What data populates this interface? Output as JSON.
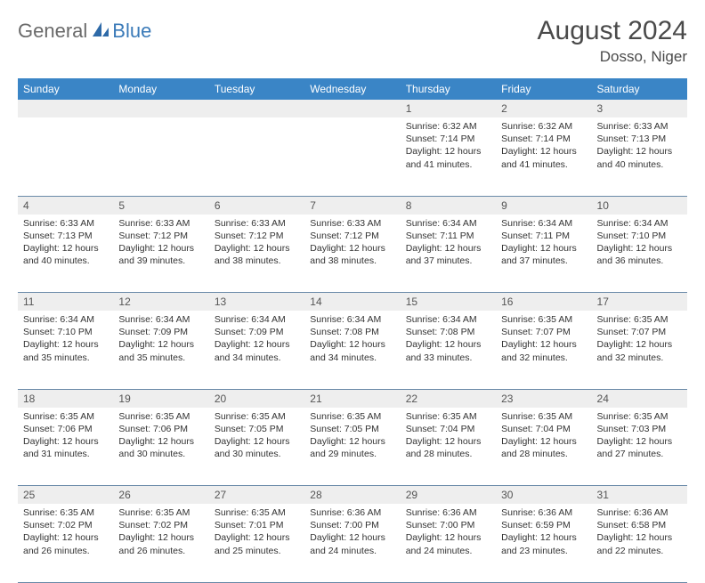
{
  "logo": {
    "part1": "General",
    "part2": "Blue"
  },
  "title": "August 2024",
  "location": "Dosso, Niger",
  "colors": {
    "header_bg": "#3a85c6",
    "header_text": "#ffffff",
    "daynum_bg": "#eeeeee",
    "border": "#6a8aa8",
    "logo_gray": "#6a6a6a",
    "logo_blue": "#3a7ab8"
  },
  "weekdays": [
    "Sunday",
    "Monday",
    "Tuesday",
    "Wednesday",
    "Thursday",
    "Friday",
    "Saturday"
  ],
  "weeks": [
    [
      null,
      null,
      null,
      null,
      {
        "n": "1",
        "sr": "6:32 AM",
        "ss": "7:14 PM",
        "dl": "12 hours and 41 minutes."
      },
      {
        "n": "2",
        "sr": "6:32 AM",
        "ss": "7:14 PM",
        "dl": "12 hours and 41 minutes."
      },
      {
        "n": "3",
        "sr": "6:33 AM",
        "ss": "7:13 PM",
        "dl": "12 hours and 40 minutes."
      }
    ],
    [
      {
        "n": "4",
        "sr": "6:33 AM",
        "ss": "7:13 PM",
        "dl": "12 hours and 40 minutes."
      },
      {
        "n": "5",
        "sr": "6:33 AM",
        "ss": "7:12 PM",
        "dl": "12 hours and 39 minutes."
      },
      {
        "n": "6",
        "sr": "6:33 AM",
        "ss": "7:12 PM",
        "dl": "12 hours and 38 minutes."
      },
      {
        "n": "7",
        "sr": "6:33 AM",
        "ss": "7:12 PM",
        "dl": "12 hours and 38 minutes."
      },
      {
        "n": "8",
        "sr": "6:34 AM",
        "ss": "7:11 PM",
        "dl": "12 hours and 37 minutes."
      },
      {
        "n": "9",
        "sr": "6:34 AM",
        "ss": "7:11 PM",
        "dl": "12 hours and 37 minutes."
      },
      {
        "n": "10",
        "sr": "6:34 AM",
        "ss": "7:10 PM",
        "dl": "12 hours and 36 minutes."
      }
    ],
    [
      {
        "n": "11",
        "sr": "6:34 AM",
        "ss": "7:10 PM",
        "dl": "12 hours and 35 minutes."
      },
      {
        "n": "12",
        "sr": "6:34 AM",
        "ss": "7:09 PM",
        "dl": "12 hours and 35 minutes."
      },
      {
        "n": "13",
        "sr": "6:34 AM",
        "ss": "7:09 PM",
        "dl": "12 hours and 34 minutes."
      },
      {
        "n": "14",
        "sr": "6:34 AM",
        "ss": "7:08 PM",
        "dl": "12 hours and 34 minutes."
      },
      {
        "n": "15",
        "sr": "6:34 AM",
        "ss": "7:08 PM",
        "dl": "12 hours and 33 minutes."
      },
      {
        "n": "16",
        "sr": "6:35 AM",
        "ss": "7:07 PM",
        "dl": "12 hours and 32 minutes."
      },
      {
        "n": "17",
        "sr": "6:35 AM",
        "ss": "7:07 PM",
        "dl": "12 hours and 32 minutes."
      }
    ],
    [
      {
        "n": "18",
        "sr": "6:35 AM",
        "ss": "7:06 PM",
        "dl": "12 hours and 31 minutes."
      },
      {
        "n": "19",
        "sr": "6:35 AM",
        "ss": "7:06 PM",
        "dl": "12 hours and 30 minutes."
      },
      {
        "n": "20",
        "sr": "6:35 AM",
        "ss": "7:05 PM",
        "dl": "12 hours and 30 minutes."
      },
      {
        "n": "21",
        "sr": "6:35 AM",
        "ss": "7:05 PM",
        "dl": "12 hours and 29 minutes."
      },
      {
        "n": "22",
        "sr": "6:35 AM",
        "ss": "7:04 PM",
        "dl": "12 hours and 28 minutes."
      },
      {
        "n": "23",
        "sr": "6:35 AM",
        "ss": "7:04 PM",
        "dl": "12 hours and 28 minutes."
      },
      {
        "n": "24",
        "sr": "6:35 AM",
        "ss": "7:03 PM",
        "dl": "12 hours and 27 minutes."
      }
    ],
    [
      {
        "n": "25",
        "sr": "6:35 AM",
        "ss": "7:02 PM",
        "dl": "12 hours and 26 minutes."
      },
      {
        "n": "26",
        "sr": "6:35 AM",
        "ss": "7:02 PM",
        "dl": "12 hours and 26 minutes."
      },
      {
        "n": "27",
        "sr": "6:35 AM",
        "ss": "7:01 PM",
        "dl": "12 hours and 25 minutes."
      },
      {
        "n": "28",
        "sr": "6:36 AM",
        "ss": "7:00 PM",
        "dl": "12 hours and 24 minutes."
      },
      {
        "n": "29",
        "sr": "6:36 AM",
        "ss": "7:00 PM",
        "dl": "12 hours and 24 minutes."
      },
      {
        "n": "30",
        "sr": "6:36 AM",
        "ss": "6:59 PM",
        "dl": "12 hours and 23 minutes."
      },
      {
        "n": "31",
        "sr": "6:36 AM",
        "ss": "6:58 PM",
        "dl": "12 hours and 22 minutes."
      }
    ]
  ],
  "labels": {
    "sunrise": "Sunrise:",
    "sunset": "Sunset:",
    "daylight": "Daylight:"
  }
}
